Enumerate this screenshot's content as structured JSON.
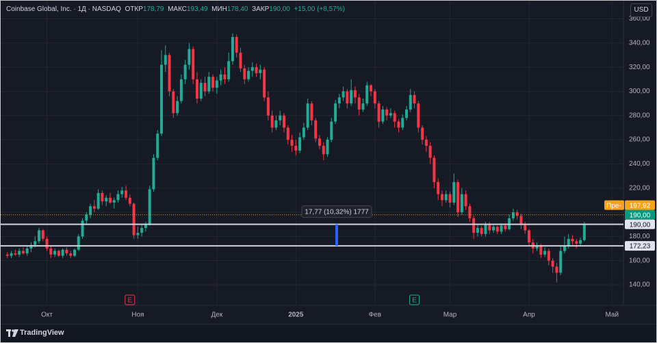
{
  "header": {
    "symbol": "Coinbase Global, Inc. · 1Д · NASDAQ",
    "open_label": "ОТКР",
    "open": {
      "value": 178.79,
      "label": "178,79"
    },
    "high_label": "МАКС",
    "high": {
      "value": 193.49,
      "label": "193,49"
    },
    "low_label": "МИН",
    "low": {
      "value": 178.4,
      "label": "178,40"
    },
    "close_label": "ЗАКР",
    "close": {
      "value": 190,
      "label": "190,00"
    },
    "change": "+15,00 (+8,57%)"
  },
  "currency": "USD",
  "footer": {
    "brand": "TradingView"
  },
  "chart_data": {
    "type": "candlestick",
    "xlim": [
      -1.7,
      155.9
    ],
    "xticks": [
      {
        "value": 10,
        "label": "Окт"
      },
      {
        "value": 33,
        "label": "Ноя"
      },
      {
        "value": 53,
        "label": "Дек"
      },
      {
        "value": 73,
        "label": "2025"
      },
      {
        "value": 93,
        "label": "Фев"
      },
      {
        "value": 112,
        "label": "Мар"
      },
      {
        "value": 132,
        "label": "Апр"
      },
      {
        "value": 153,
        "label": "Май"
      }
    ],
    "ylim": [
      123,
      375
    ],
    "yticks": [
      {
        "value": 140,
        "label": "140,00"
      },
      {
        "value": 160,
        "label": "160,00"
      },
      {
        "value": 180,
        "label": "180,00"
      },
      {
        "value": 200,
        "label": "200,00"
      },
      {
        "value": 220,
        "label": "220,00"
      },
      {
        "value": 240,
        "label": "240,00"
      },
      {
        "value": 260,
        "label": "260,00"
      },
      {
        "value": 280,
        "label": "280,00"
      },
      {
        "value": 300,
        "label": "300,00"
      },
      {
        "value": 320,
        "label": "320,00"
      },
      {
        "value": 340,
        "label": "340,00"
      },
      {
        "value": 360,
        "label": "360,00"
      }
    ],
    "grid": true,
    "series": [
      {
        "up_color": "#22ab94",
        "down_color": "#f23645",
        "values": [
          [
            165,
            167,
            162,
            164
          ],
          [
            164,
            168,
            162,
            166
          ],
          [
            166,
            169,
            164,
            165
          ],
          [
            165,
            170,
            163,
            168
          ],
          [
            168,
            171,
            165,
            166
          ],
          [
            166,
            172,
            164,
            170
          ],
          [
            170,
            175,
            167,
            173
          ],
          [
            173,
            180,
            171,
            176
          ],
          [
            176,
            187,
            174,
            185
          ],
          [
            185,
            186,
            176,
            178
          ],
          [
            178,
            180,
            168,
            170
          ],
          [
            170,
            172,
            162,
            165
          ],
          [
            165,
            170,
            163,
            168
          ],
          [
            168,
            169,
            163,
            164
          ],
          [
            164,
            170,
            162,
            169
          ],
          [
            169,
            171,
            164,
            166
          ],
          [
            166,
            168,
            162,
            164
          ],
          [
            164,
            170,
            163,
            169
          ],
          [
            169,
            182,
            168,
            180
          ],
          [
            180,
            195,
            178,
            193
          ],
          [
            193,
            200,
            190,
            198
          ],
          [
            198,
            207,
            195,
            205
          ],
          [
            205,
            210,
            200,
            203
          ],
          [
            203,
            219,
            202,
            216
          ],
          [
            216,
            218,
            206,
            209
          ],
          [
            209,
            214,
            205,
            212
          ],
          [
            212,
            216,
            207,
            208
          ],
          [
            208,
            212,
            203,
            210
          ],
          [
            210,
            218,
            208,
            215
          ],
          [
            215,
            221,
            212,
            218
          ],
          [
            218,
            222,
            210,
            212
          ],
          [
            212,
            215,
            205,
            207
          ],
          [
            207,
            208,
            178,
            181
          ],
          [
            181,
            188,
            178,
            183
          ],
          [
            183,
            190,
            180,
            187
          ],
          [
            187,
            192,
            184,
            190
          ],
          [
            190,
            222,
            189,
            219
          ],
          [
            219,
            248,
            217,
            245
          ],
          [
            245,
            268,
            243,
            265
          ],
          [
            265,
            334,
            263,
            322
          ],
          [
            322,
            338,
            316,
            330
          ],
          [
            330,
            332,
            296,
            300
          ],
          [
            300,
            302,
            278,
            282
          ],
          [
            282,
            296,
            280,
            292
          ],
          [
            292,
            314,
            290,
            310
          ],
          [
            310,
            326,
            306,
            322
          ],
          [
            322,
            340,
            318,
            335
          ],
          [
            335,
            337,
            306,
            310
          ],
          [
            310,
            316,
            290,
            294
          ],
          [
            294,
            310,
            292,
            307
          ],
          [
            307,
            312,
            296,
            300
          ],
          [
            300,
            316,
            298,
            312
          ],
          [
            312,
            314,
            300,
            303
          ],
          [
            303,
            312,
            298,
            309
          ],
          [
            309,
            318,
            305,
            314
          ],
          [
            314,
            320,
            306,
            310
          ],
          [
            310,
            332,
            308,
            325
          ],
          [
            325,
            348,
            322,
            345
          ],
          [
            345,
            347,
            328,
            332
          ],
          [
            332,
            336,
            316,
            319
          ],
          [
            319,
            322,
            306,
            310
          ],
          [
            310,
            320,
            308,
            317
          ],
          [
            317,
            324,
            312,
            320
          ],
          [
            320,
            323,
            312,
            315
          ],
          [
            315,
            322,
            310,
            318
          ],
          [
            318,
            320,
            292,
            295
          ],
          [
            295,
            300,
            276,
            280
          ],
          [
            280,
            284,
            266,
            270
          ],
          [
            270,
            280,
            268,
            276
          ],
          [
            276,
            284,
            272,
            280
          ],
          [
            280,
            282,
            266,
            270
          ],
          [
            270,
            272,
            256,
            260
          ],
          [
            260,
            264,
            250,
            255
          ],
          [
            255,
            260,
            247,
            251
          ],
          [
            251,
            266,
            249,
            262
          ],
          [
            262,
            274,
            260,
            270
          ],
          [
            270,
            294,
            268,
            290
          ],
          [
            290,
            292,
            272,
            276
          ],
          [
            276,
            278,
            258,
            261
          ],
          [
            261,
            264,
            252,
            255
          ],
          [
            255,
            258,
            243,
            248
          ],
          [
            248,
            262,
            246,
            260
          ],
          [
            260,
            278,
            258,
            275
          ],
          [
            275,
            293,
            273,
            290
          ],
          [
            290,
            298,
            286,
            295
          ],
          [
            295,
            304,
            292,
            300
          ],
          [
            300,
            302,
            286,
            290
          ],
          [
            290,
            310,
            288,
            301
          ],
          [
            301,
            304,
            290,
            295
          ],
          [
            295,
            298,
            280,
            285
          ],
          [
            285,
            294,
            283,
            290
          ],
          [
            290,
            308,
            288,
            305
          ],
          [
            305,
            306,
            296,
            300
          ],
          [
            300,
            302,
            286,
            290
          ],
          [
            290,
            292,
            270,
            275
          ],
          [
            275,
            288,
            273,
            285
          ],
          [
            285,
            287,
            276,
            280
          ],
          [
            280,
            286,
            278,
            282
          ],
          [
            282,
            284,
            270,
            275
          ],
          [
            275,
            277,
            266,
            270
          ],
          [
            270,
            281,
            268,
            278
          ],
          [
            278,
            288,
            276,
            285
          ],
          [
            285,
            302,
            283,
            297
          ],
          [
            297,
            300,
            286,
            290
          ],
          [
            290,
            292,
            266,
            270
          ],
          [
            270,
            272,
            256,
            260
          ],
          [
            260,
            263,
            250,
            255
          ],
          [
            255,
            258,
            240,
            245
          ],
          [
            245,
            247,
            220,
            225
          ],
          [
            225,
            228,
            210,
            215
          ],
          [
            215,
            218,
            205,
            210
          ],
          [
            210,
            218,
            208,
            215
          ],
          [
            215,
            217,
            204,
            208
          ],
          [
            208,
            232,
            206,
            225
          ],
          [
            225,
            227,
            196,
            200
          ],
          [
            200,
            220,
            198,
            215
          ],
          [
            215,
            218,
            202,
            205
          ],
          [
            205,
            207,
            192,
            195
          ],
          [
            195,
            197,
            178,
            183
          ],
          [
            183,
            190,
            180,
            187
          ],
          [
            187,
            189,
            180,
            182
          ],
          [
            182,
            192,
            180,
            190
          ],
          [
            190,
            192,
            182,
            185
          ],
          [
            185,
            190,
            183,
            188
          ],
          [
            188,
            189,
            182,
            184
          ],
          [
            184,
            191,
            182,
            189
          ],
          [
            189,
            191,
            184,
            186
          ],
          [
            186,
            198,
            185,
            195
          ],
          [
            195,
            203,
            193,
            200
          ],
          [
            200,
            202,
            194,
            197
          ],
          [
            197,
            199,
            186,
            190
          ],
          [
            190,
            192,
            182,
            185
          ],
          [
            185,
            186,
            172,
            175
          ],
          [
            175,
            178,
            166,
            170
          ],
          [
            170,
            175,
            168,
            172
          ],
          [
            172,
            174,
            162,
            165
          ],
          [
            165,
            171,
            163,
            168
          ],
          [
            168,
            170,
            156,
            160
          ],
          [
            160,
            162,
            150,
            155
          ],
          [
            155,
            158,
            142,
            150
          ],
          [
            150,
            172,
            148,
            168
          ],
          [
            168,
            180,
            166,
            172
          ],
          [
            172,
            182,
            170,
            178
          ],
          [
            178,
            181,
            173,
            176
          ],
          [
            176,
            178,
            170,
            174
          ],
          [
            174,
            179,
            172,
            177
          ],
          [
            177,
            192,
            176,
            190
          ]
        ]
      }
    ],
    "levels": [
      {
        "value": 190,
        "label": "190,00"
      },
      {
        "value": 172.23,
        "label": "172,23"
      }
    ],
    "last_price": {
      "value": 190,
      "label": "190,00",
      "color": "#089981"
    },
    "premarket": {
      "tag": "Пре-",
      "value": 197.92,
      "label": "197,92",
      "color": "#f7a21b"
    },
    "measure": {
      "from": 172.23,
      "to": 190,
      "label": "17,77 (10,32%) 1777",
      "color": "#2962ff"
    },
    "earnings": [
      {
        "x": 31,
        "label": "E",
        "color": "#f23645"
      },
      {
        "x": 103,
        "label": "E",
        "color": "#22ab94"
      }
    ]
  }
}
